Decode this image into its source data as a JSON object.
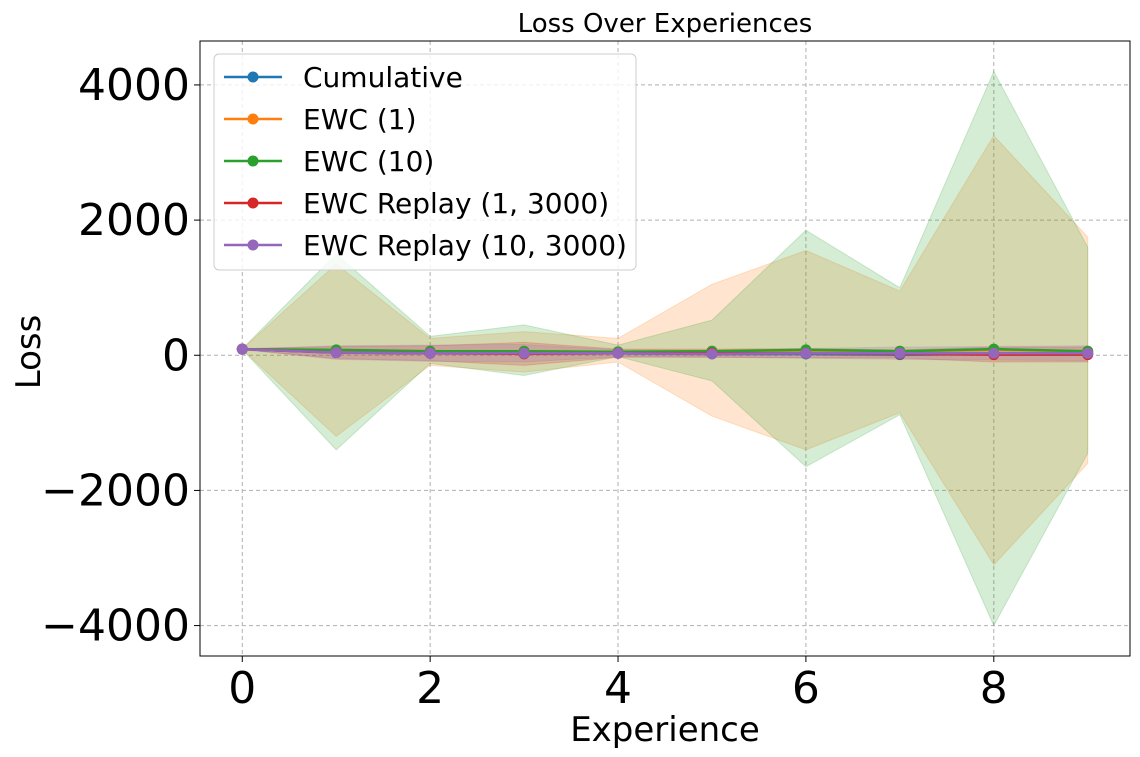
{
  "chart_data": {
    "type": "line",
    "title": "Loss Over Experiences",
    "xlabel": "Experience",
    "ylabel": "Loss",
    "xlim": [
      -0.45,
      9.45
    ],
    "ylim": [
      -4450,
      4650
    ],
    "x": [
      0,
      1,
      2,
      3,
      4,
      5,
      6,
      7,
      8,
      9
    ],
    "xticks": [
      "0",
      "2",
      "4",
      "6",
      "8"
    ],
    "yticks": [
      "4000",
      "2000",
      "0",
      "−2000",
      "−4000"
    ],
    "grid": true,
    "legend_position": "upper left",
    "series": [
      {
        "name": "Cumulative",
        "color": "#1f77b4",
        "values": [
          90,
          40,
          30,
          40,
          30,
          20,
          20,
          10,
          20,
          20
        ],
        "lower": [
          85,
          20,
          10,
          10,
          10,
          0,
          0,
          -10,
          0,
          0
        ],
        "upper": [
          95,
          60,
          50,
          70,
          50,
          40,
          40,
          30,
          40,
          40
        ]
      },
      {
        "name": "EWC (1)",
        "color": "#ff7f0e",
        "values": [
          90,
          70,
          60,
          60,
          50,
          60,
          70,
          60,
          80,
          60
        ],
        "lower": [
          85,
          -1200,
          -150,
          -250,
          -100,
          -900,
          -1400,
          -850,
          -3100,
          -1600
        ],
        "upper": [
          95,
          1350,
          250,
          350,
          250,
          1050,
          1550,
          950,
          3250,
          1750
        ]
      },
      {
        "name": "EWC (10)",
        "color": "#2ca02c",
        "values": [
          90,
          80,
          60,
          60,
          50,
          60,
          80,
          60,
          90,
          60
        ],
        "lower": [
          85,
          -1400,
          -120,
          -300,
          -20,
          -380,
          -1650,
          -880,
          -4000,
          -1450
        ],
        "upper": [
          95,
          1500,
          280,
          450,
          150,
          520,
          1850,
          1000,
          4200,
          1600
        ]
      },
      {
        "name": "EWC Replay (1, 3000)",
        "color": "#d62728",
        "values": [
          90,
          40,
          30,
          20,
          30,
          30,
          30,
          20,
          10,
          10
        ],
        "lower": [
          85,
          -50,
          -80,
          -150,
          -30,
          -30,
          -40,
          -40,
          -100,
          -100
        ],
        "upper": [
          95,
          130,
          140,
          190,
          90,
          90,
          100,
          80,
          120,
          120
        ]
      },
      {
        "name": "EWC Replay (10, 3000)",
        "color": "#9467bd",
        "values": [
          90,
          40,
          30,
          30,
          30,
          20,
          30,
          30,
          30,
          30
        ],
        "lower": [
          85,
          -60,
          -90,
          -100,
          -20,
          -30,
          -40,
          -60,
          -70,
          -80
        ],
        "upper": [
          95,
          140,
          150,
          160,
          80,
          70,
          100,
          120,
          130,
          140
        ]
      }
    ]
  }
}
